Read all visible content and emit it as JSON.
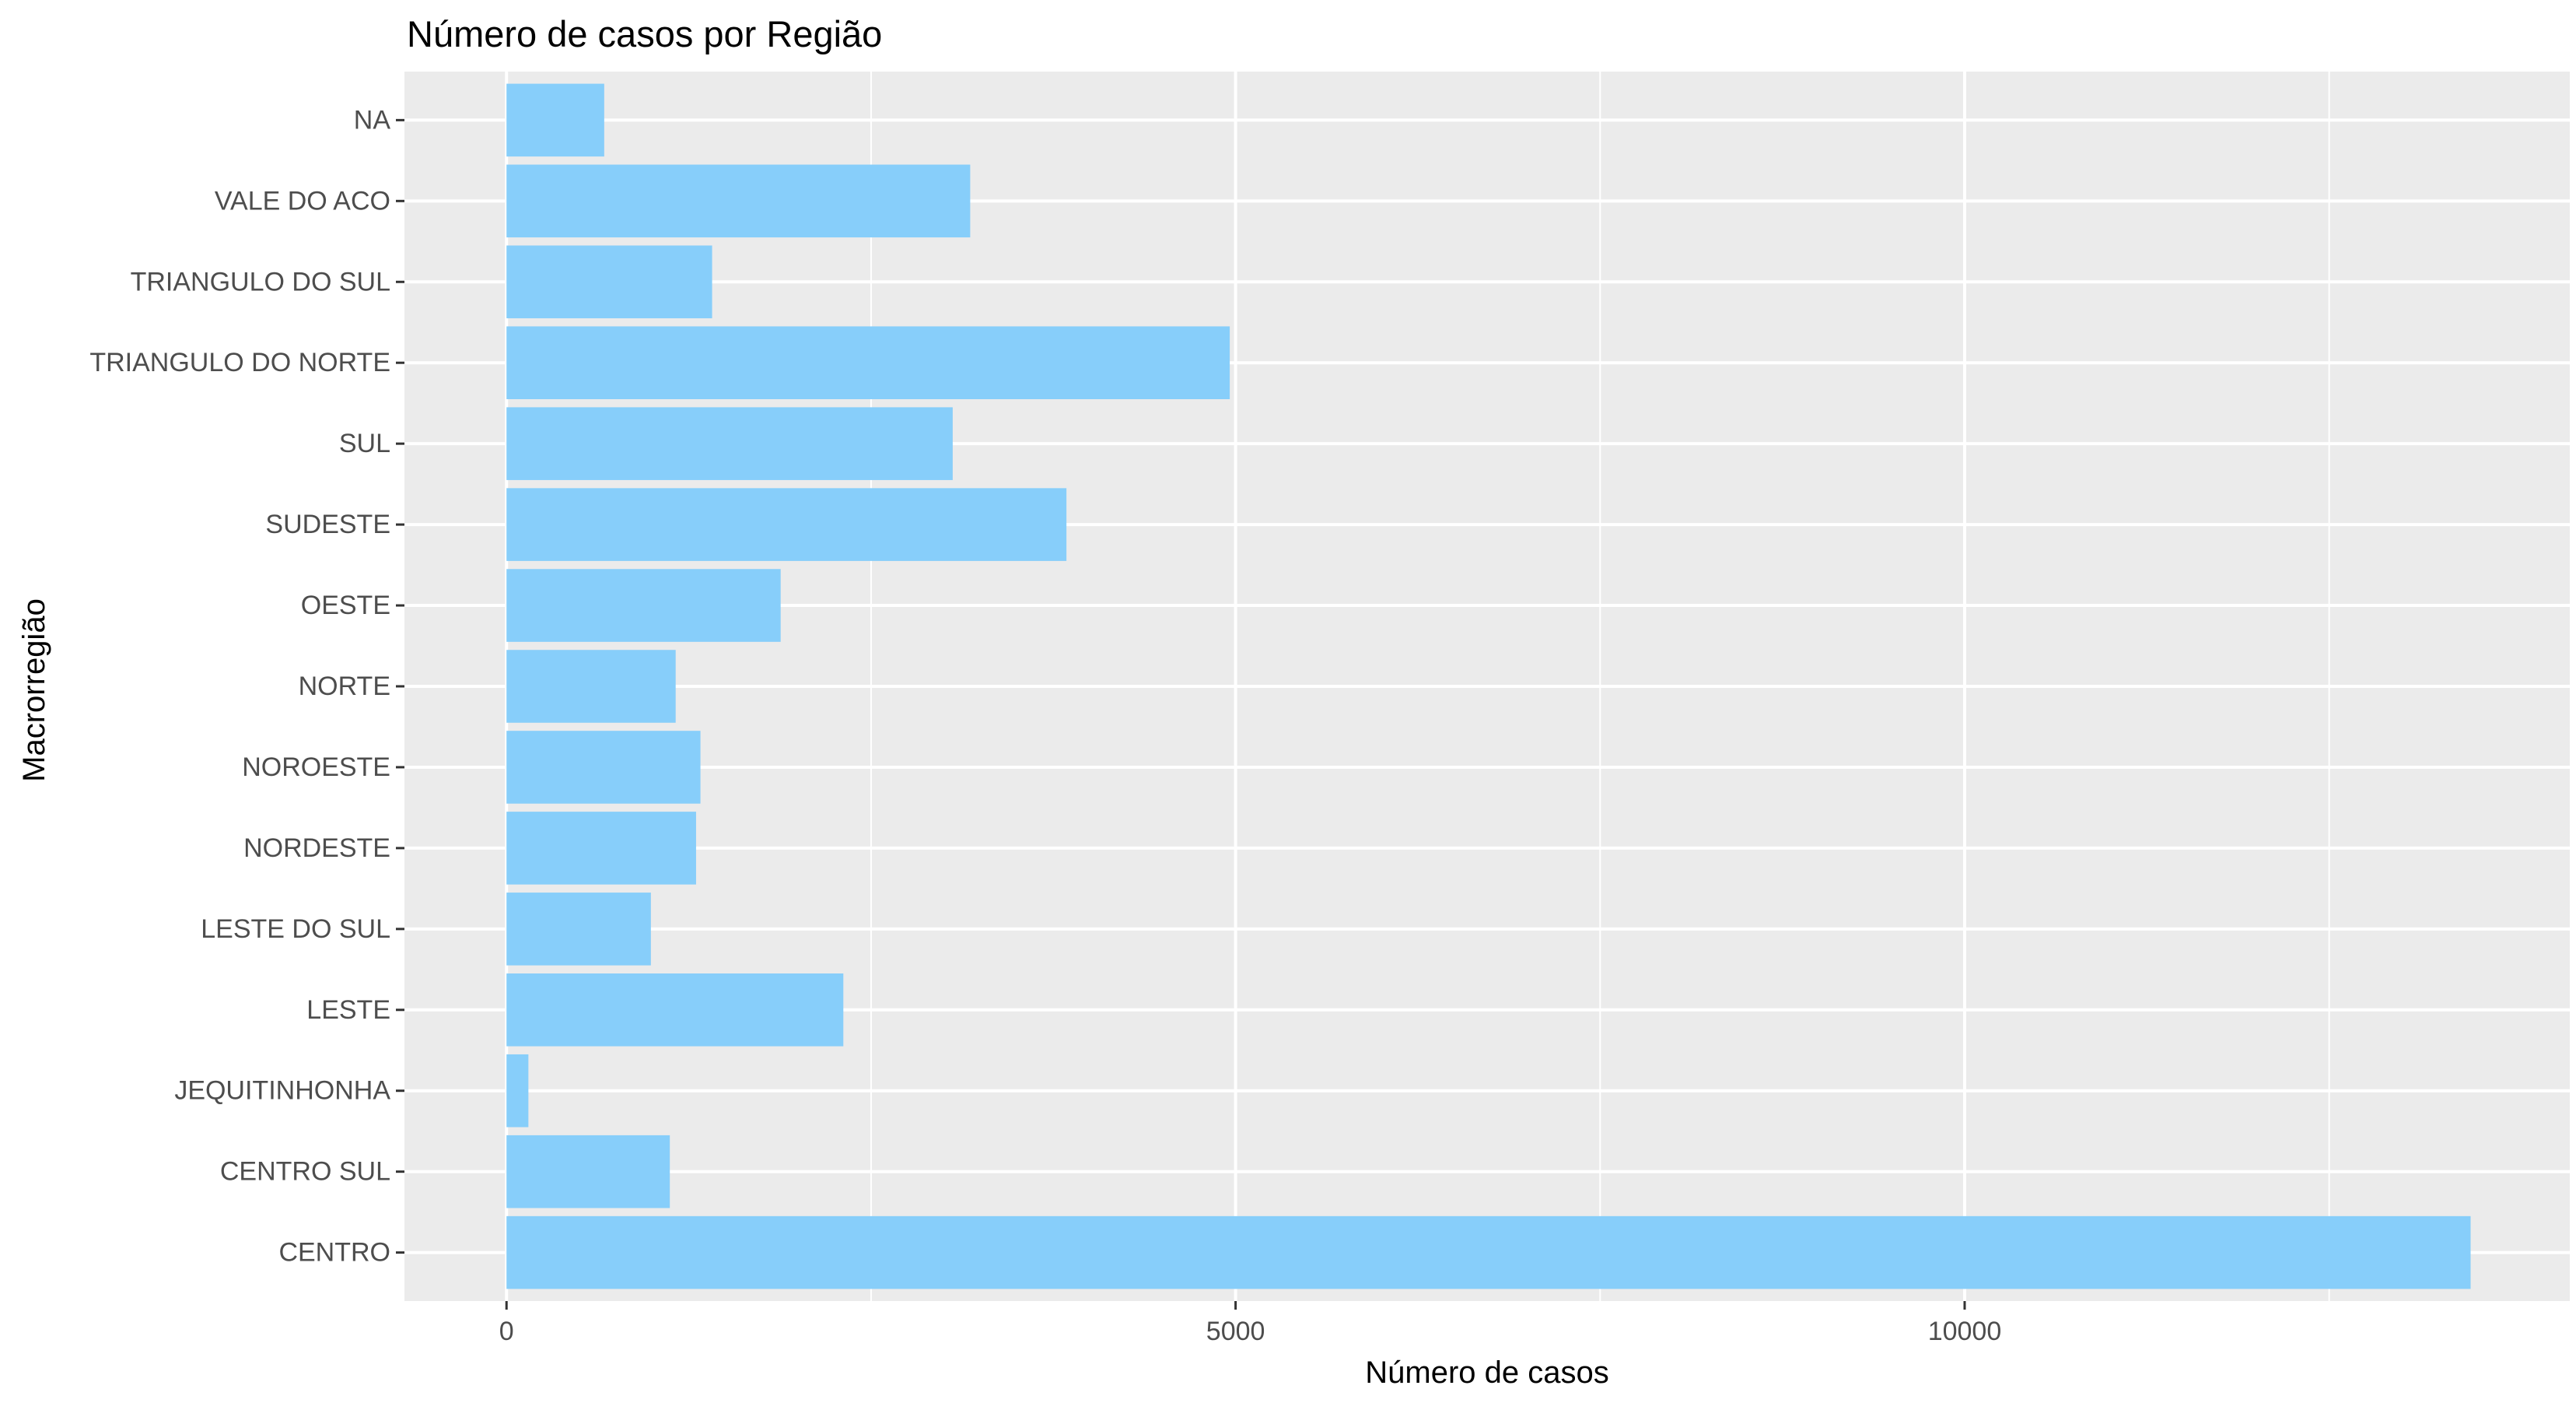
{
  "chart_data": {
    "type": "bar",
    "orientation": "horizontal",
    "title": "Número de casos por Região",
    "xlabel": "Número de casos",
    "ylabel": "Macrorregião",
    "categories": [
      "CENTRO",
      "CENTRO SUL",
      "JEQUITINHONHA",
      "LESTE",
      "LESTE DO SUL",
      "NORDESTE",
      "NOROESTE",
      "NORTE",
      "OESTE",
      "SUDESTE",
      "SUL",
      "TRIANGULO DO NORTE",
      "TRIANGULO DO SUL",
      "VALE DO ACO",
      "NA"
    ],
    "values": [
      13470,
      1120,
      150,
      2310,
      990,
      1300,
      1330,
      1160,
      1880,
      3840,
      3060,
      4960,
      1410,
      3180,
      670
    ],
    "xlim": [
      -700,
      14150
    ],
    "xticks": [
      0,
      5000,
      10000
    ],
    "xtick_labels": [
      "0",
      "5000",
      "10000"
    ],
    "bar_color": "#87CEFA",
    "panel_background": "#EBEBEB",
    "grid_color": "#FFFFFF",
    "grid": true,
    "legend": "none"
  }
}
